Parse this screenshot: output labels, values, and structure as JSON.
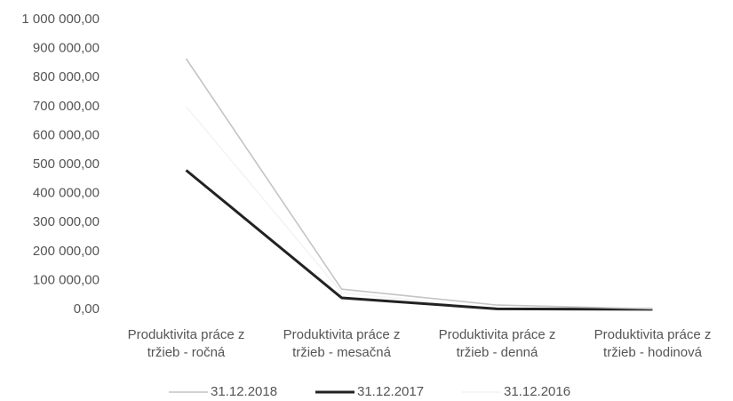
{
  "chart_data": {
    "type": "line",
    "categories": [
      "Produktivita práce z tržieb - ročná",
      "Produktivita práce z tržieb - mesačná",
      "Produktivita práce z tržieb - denná",
      "Produktivita práce z tržieb - hodinová"
    ],
    "series": [
      {
        "name": "31.12.2018",
        "color": "#c4c4c4",
        "values": [
          865000,
          70000,
          15000,
          2000
        ]
      },
      {
        "name": "31.12.2017",
        "color": "#222222",
        "values": [
          480000,
          40000,
          2000,
          250
        ]
      },
      {
        "name": "31.12.2016",
        "color": "#f4f4f4",
        "values": [
          700000,
          58000,
          2700,
          340
        ]
      }
    ],
    "ylim": [
      0,
      1000000
    ],
    "yticks": [
      {
        "value": 0,
        "label": "0,00"
      },
      {
        "value": 100000,
        "label": "100 000,00"
      },
      {
        "value": 200000,
        "label": "200 000,00"
      },
      {
        "value": 300000,
        "label": "300 000,00"
      },
      {
        "value": 400000,
        "label": "400 000,00"
      },
      {
        "value": 500000,
        "label": "500 000,00"
      },
      {
        "value": 600000,
        "label": "600 000,00"
      },
      {
        "value": 700000,
        "label": "700 000,00"
      },
      {
        "value": 800000,
        "label": "800 000,00"
      },
      {
        "value": 900000,
        "label": "900 000,00"
      },
      {
        "value": 1000000,
        "label": "1 000 000,00"
      }
    ],
    "grid": false,
    "legend": "bottom"
  }
}
